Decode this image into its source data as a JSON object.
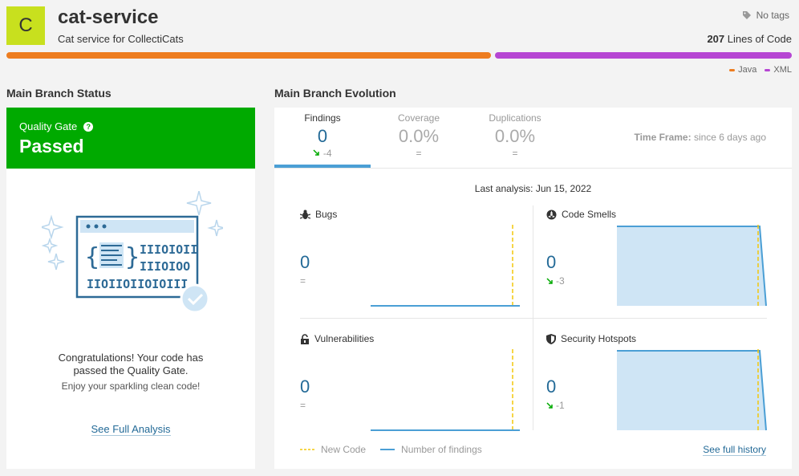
{
  "project": {
    "avatar_letter": "C",
    "name": "cat-service",
    "description": "Cat service for CollectiCats",
    "tags": "No tags",
    "loc_count": "207",
    "loc_label": "Lines of Code"
  },
  "languages": [
    {
      "name": "Java",
      "color": "#ed7d20",
      "fraction": 0.62
    },
    {
      "name": "XML",
      "color": "#b646d3",
      "fraction": 0.38
    }
  ],
  "sections": {
    "status_title": "Main Branch Status",
    "evolution_title": "Main Branch Evolution"
  },
  "quality_gate": {
    "label": "Quality Gate",
    "help": "?",
    "status": "Passed",
    "color": "#00aa00",
    "congrats_line1": "Congratulations! Your code has",
    "congrats_line2": "passed the Quality Gate.",
    "subtext": "Enjoy your sparkling clean code!",
    "full_analysis_link": "See Full Analysis"
  },
  "evolution": {
    "tabs": [
      {
        "label": "Findings",
        "value": "0",
        "delta": "-4",
        "active": true
      },
      {
        "label": "Coverage",
        "value": "0.0%",
        "delta": "=",
        "active": false
      },
      {
        "label": "Duplications",
        "value": "0.0%",
        "delta": "=",
        "active": false
      }
    ],
    "time_frame_label": "Time Frame:",
    "time_frame_value": "since 6 days ago",
    "last_analysis": "Last analysis: Jun 15, 2022",
    "metrics": [
      {
        "title": "Bugs",
        "icon": "bug-icon",
        "value": "0",
        "delta": "=",
        "trend": "flat"
      },
      {
        "title": "Code Smells",
        "icon": "code-smell-icon",
        "value": "0",
        "delta": "-3",
        "trend": "down"
      },
      {
        "title": "Vulnerabilities",
        "icon": "lock-icon",
        "value": "0",
        "delta": "=",
        "trend": "flat"
      },
      {
        "title": "Security Hotspots",
        "icon": "shield-icon",
        "value": "0",
        "delta": "-1",
        "trend": "down"
      }
    ],
    "legend_new_code": "New Code",
    "legend_findings": "Number of findings",
    "full_history_link": "See full history"
  }
}
